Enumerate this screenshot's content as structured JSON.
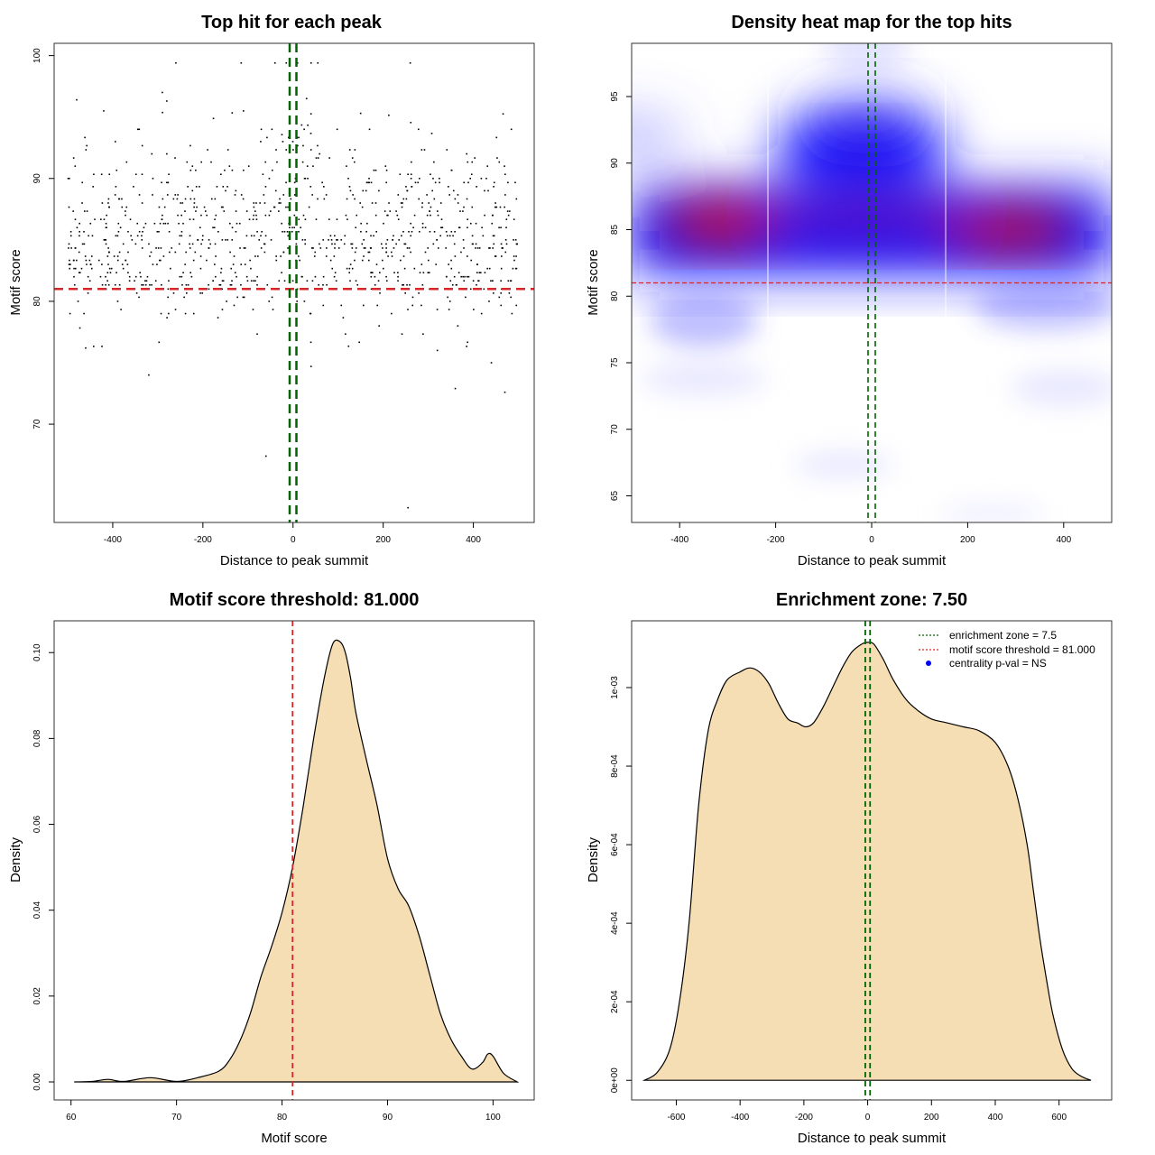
{
  "colors": {
    "threshold_line": "#d62728",
    "zone_line": "#006400",
    "fill": "#f5deb3",
    "heat_low": "#0000ff",
    "heat_high": "#ff0000",
    "points": "#000000"
  },
  "chart_data": [
    {
      "type": "scatter",
      "title": "Top hit for each peak",
      "xlabel": "Distance to peak summit",
      "ylabel": "Motif score",
      "xlim": [
        -530,
        535
      ],
      "ylim": [
        62,
        101
      ],
      "xticks": [
        "-400",
        "-200",
        "0",
        "200",
        "400"
      ],
      "yticks": [
        "70",
        "80",
        "90",
        "100"
      ],
      "threshold": 81.0,
      "zone": [
        -7.5,
        7.5
      ],
      "n_points": 1000,
      "sample_points": [
        [
          -480,
          96.4
        ],
        [
          -260,
          99.4
        ],
        [
          -115,
          99.4
        ],
        [
          -40,
          99.4
        ],
        [
          -15,
          99.4
        ],
        [
          10,
          99.4
        ],
        [
          40,
          99.4
        ],
        [
          55,
          99.4
        ],
        [
          260,
          99.4
        ],
        [
          -290,
          97.0
        ],
        [
          -280,
          96.3
        ],
        [
          30,
          96.5
        ],
        [
          -420,
          95.5
        ],
        [
          -110,
          95.5
        ],
        [
          150,
          95.3
        ],
        [
          -320,
          74.0
        ],
        [
          -460,
          76.2
        ],
        [
          -60,
          67.4
        ],
        [
          40,
          74.7
        ],
        [
          255,
          63.2
        ],
        [
          360,
          72.9
        ],
        [
          470,
          72.6
        ],
        [
          440,
          75.0
        ]
      ]
    },
    {
      "type": "heatmap",
      "title": "Density heat map for the top hits",
      "xlabel": "Distance to peak summit",
      "ylabel": "Motif score",
      "xlim": [
        -500,
        500
      ],
      "ylim": [
        63,
        99
      ],
      "xticks": [
        "-400",
        "-200",
        "0",
        "200",
        "400"
      ],
      "yticks": [
        "65",
        "70",
        "75",
        "80",
        "85",
        "90",
        "95"
      ],
      "threshold": 81.0,
      "zone": [
        -7.5,
        7.5
      ],
      "hot_spots": [
        [
          -310,
          85.5
        ],
        [
          280,
          85.0
        ]
      ]
    },
    {
      "type": "area",
      "title": "Motif score threshold: 81.000",
      "xlabel": "Motif score",
      "ylabel": "Density",
      "xlim": [
        58.4,
        103.9
      ],
      "ylim": [
        -0.0042,
        0.1074
      ],
      "xticks": [
        "60",
        "70",
        "80",
        "90",
        "100"
      ],
      "yticks": [
        "0.00",
        "0.02",
        "0.04",
        "0.06",
        "0.08",
        "0.10"
      ],
      "threshold": 81.0,
      "x": [
        60.3,
        62,
        63.5,
        65,
        67.5,
        70,
        72,
        74,
        75,
        76,
        77,
        78,
        79,
        80,
        81,
        82,
        83,
        84,
        84.8,
        85.5,
        86,
        86.5,
        87,
        88,
        89,
        90,
        91,
        92,
        93,
        94,
        95,
        96,
        97,
        98,
        99,
        99.5,
        100,
        101,
        102.3
      ],
      "y": [
        0.0,
        0.0001,
        0.0006,
        0.0001,
        0.001,
        0.0001,
        0.001,
        0.0025,
        0.005,
        0.0095,
        0.016,
        0.0245,
        0.0315,
        0.0395,
        0.05,
        0.064,
        0.08,
        0.094,
        0.102,
        0.1025,
        0.1,
        0.094,
        0.086,
        0.075,
        0.0645,
        0.052,
        0.045,
        0.041,
        0.034,
        0.025,
        0.016,
        0.01,
        0.006,
        0.003,
        0.0045,
        0.0065,
        0.006,
        0.002,
        0.0
      ]
    },
    {
      "type": "area",
      "title": "Enrichment zone: 7.50",
      "xlabel": "Distance to peak summit",
      "ylabel": "Density",
      "xlim": [
        -740,
        765
      ],
      "ylim": [
        -5e-05,
        0.00117
      ],
      "xticks": [
        "-600",
        "-400",
        "-200",
        "0",
        "200",
        "400",
        "600"
      ],
      "yticks": [
        "0e+00",
        "2e-04",
        "4e-04",
        "6e-04",
        "8e-04",
        "1e-03"
      ],
      "zone": [
        -7.5,
        7.5
      ],
      "legend": {
        "placement": "top-right",
        "entries": [
          {
            "label": "enrichment zone = 7.5",
            "color": "#006400",
            "style": "dotted-line"
          },
          {
            "label": "motif score threshold = 81.000",
            "color": "#d62728",
            "style": "dotted-line"
          },
          {
            "label": "centrality p-val = NS",
            "color": "#0000ff",
            "style": "point"
          }
        ]
      },
      "x": [
        -700,
        -660,
        -620,
        -590,
        -560,
        -530,
        -500,
        -470,
        -440,
        -400,
        -370,
        -340,
        -310,
        -280,
        -250,
        -220,
        -195,
        -170,
        -140,
        -110,
        -80,
        -50,
        -20,
        0,
        20,
        50,
        80,
        120,
        160,
        200,
        250,
        300,
        350,
        400,
        440,
        470,
        500,
        520,
        540,
        560,
        580,
        610,
        640,
        670,
        700
      ],
      "y": [
        0.0,
        2e-05,
        8e-05,
        0.0002,
        0.0004,
        0.0007,
        0.00089,
        0.00097,
        0.00102,
        0.00104,
        0.00105,
        0.00104,
        0.00101,
        0.00096,
        0.00092,
        0.00091,
        0.0009,
        0.00091,
        0.00095,
        0.001,
        0.00105,
        0.00109,
        0.00111,
        0.001115,
        0.00111,
        0.00107,
        0.00102,
        0.00097,
        0.00094,
        0.00092,
        0.00091,
        0.0009,
        0.00089,
        0.00086,
        0.0008,
        0.00072,
        0.0006,
        0.00048,
        0.00036,
        0.00026,
        0.00017,
        8e-05,
        3e-05,
        1e-05,
        0.0
      ]
    }
  ]
}
